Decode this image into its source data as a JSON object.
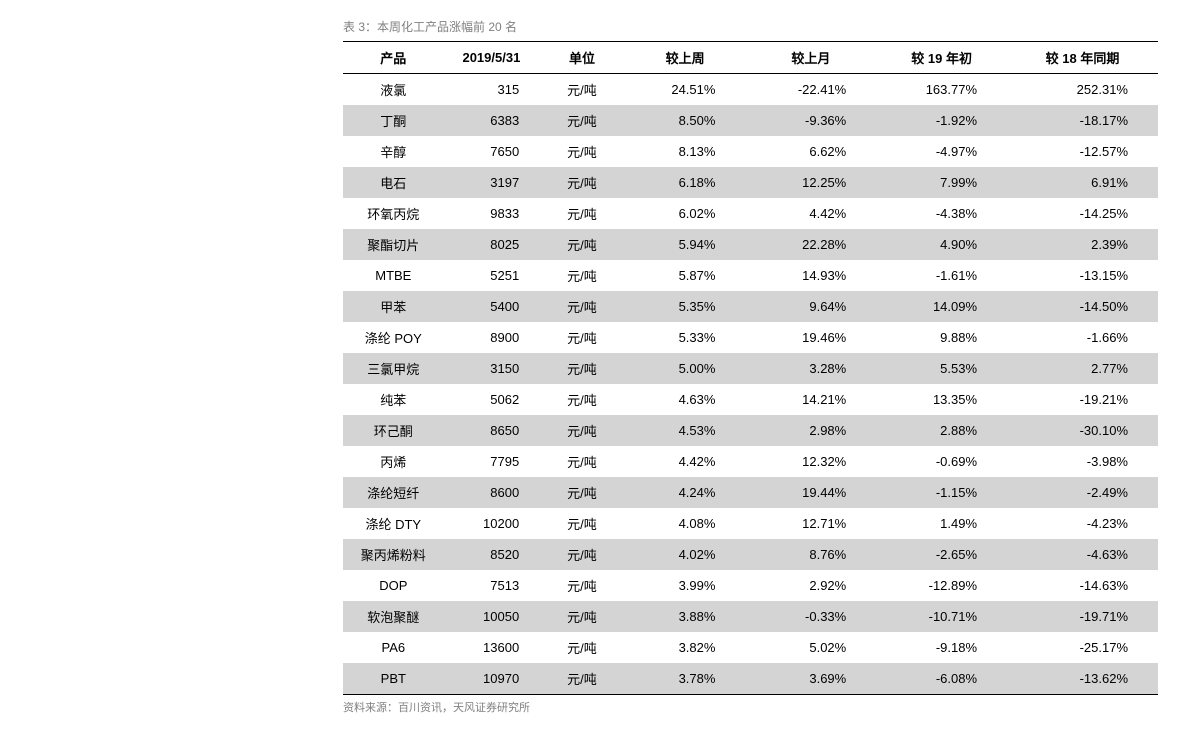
{
  "title": "表 3：本周化工产品涨幅前 20 名",
  "source": "资料来源：百川资讯，天风证券研究所",
  "colors": {
    "background": "#ffffff",
    "stripe_odd": "#d4d4d4",
    "stripe_even": "#ffffff",
    "border": "#000000",
    "caption": "#808080",
    "text": "#000000"
  },
  "typography": {
    "title_fontsize": 12,
    "header_fontsize": 13,
    "cell_fontsize": 13,
    "source_fontsize": 11,
    "header_weight": "bold"
  },
  "columns": [
    {
      "key": "product",
      "label": "产品",
      "align": "center"
    },
    {
      "key": "date",
      "label": "2019/5/31",
      "align": "right"
    },
    {
      "key": "unit",
      "label": "单位",
      "align": "center"
    },
    {
      "key": "wk",
      "label": "较上周",
      "align": "right"
    },
    {
      "key": "mo",
      "label": "较上月",
      "align": "right"
    },
    {
      "key": "ytd",
      "label": "较 19 年初",
      "align": "right"
    },
    {
      "key": "yoy",
      "label": "较 18 年同期",
      "align": "right"
    }
  ],
  "rows": [
    {
      "product": "液氯",
      "date": "315",
      "unit": "元/吨",
      "wk": "24.51%",
      "mo": "-22.41%",
      "ytd": "163.77%",
      "yoy": "252.31%"
    },
    {
      "product": "丁酮",
      "date": "6383",
      "unit": "元/吨",
      "wk": "8.50%",
      "mo": "-9.36%",
      "ytd": "-1.92%",
      "yoy": "-18.17%"
    },
    {
      "product": "辛醇",
      "date": "7650",
      "unit": "元/吨",
      "wk": "8.13%",
      "mo": "6.62%",
      "ytd": "-4.97%",
      "yoy": "-12.57%"
    },
    {
      "product": "电石",
      "date": "3197",
      "unit": "元/吨",
      "wk": "6.18%",
      "mo": "12.25%",
      "ytd": "7.99%",
      "yoy": "6.91%"
    },
    {
      "product": "环氧丙烷",
      "date": "9833",
      "unit": "元/吨",
      "wk": "6.02%",
      "mo": "4.42%",
      "ytd": "-4.38%",
      "yoy": "-14.25%"
    },
    {
      "product": "聚酯切片",
      "date": "8025",
      "unit": "元/吨",
      "wk": "5.94%",
      "mo": "22.28%",
      "ytd": "4.90%",
      "yoy": "2.39%"
    },
    {
      "product": "MTBE",
      "date": "5251",
      "unit": "元/吨",
      "wk": "5.87%",
      "mo": "14.93%",
      "ytd": "-1.61%",
      "yoy": "-13.15%"
    },
    {
      "product": "甲苯",
      "date": "5400",
      "unit": "元/吨",
      "wk": "5.35%",
      "mo": "9.64%",
      "ytd": "14.09%",
      "yoy": "-14.50%"
    },
    {
      "product": "涤纶 POY",
      "date": "8900",
      "unit": "元/吨",
      "wk": "5.33%",
      "mo": "19.46%",
      "ytd": "9.88%",
      "yoy": "-1.66%"
    },
    {
      "product": "三氯甲烷",
      "date": "3150",
      "unit": "元/吨",
      "wk": "5.00%",
      "mo": "3.28%",
      "ytd": "5.53%",
      "yoy": "2.77%"
    },
    {
      "product": "纯苯",
      "date": "5062",
      "unit": "元/吨",
      "wk": "4.63%",
      "mo": "14.21%",
      "ytd": "13.35%",
      "yoy": "-19.21%"
    },
    {
      "product": "环己酮",
      "date": "8650",
      "unit": "元/吨",
      "wk": "4.53%",
      "mo": "2.98%",
      "ytd": "2.88%",
      "yoy": "-30.10%"
    },
    {
      "product": "丙烯",
      "date": "7795",
      "unit": "元/吨",
      "wk": "4.42%",
      "mo": "12.32%",
      "ytd": "-0.69%",
      "yoy": "-3.98%"
    },
    {
      "product": "涤纶短纤",
      "date": "8600",
      "unit": "元/吨",
      "wk": "4.24%",
      "mo": "19.44%",
      "ytd": "-1.15%",
      "yoy": "-2.49%"
    },
    {
      "product": "涤纶 DTY",
      "date": "10200",
      "unit": "元/吨",
      "wk": "4.08%",
      "mo": "12.71%",
      "ytd": "1.49%",
      "yoy": "-4.23%"
    },
    {
      "product": "聚丙烯粉料",
      "date": "8520",
      "unit": "元/吨",
      "wk": "4.02%",
      "mo": "8.76%",
      "ytd": "-2.65%",
      "yoy": "-4.63%"
    },
    {
      "product": "DOP",
      "date": "7513",
      "unit": "元/吨",
      "wk": "3.99%",
      "mo": "2.92%",
      "ytd": "-12.89%",
      "yoy": "-14.63%"
    },
    {
      "product": "软泡聚醚",
      "date": "10050",
      "unit": "元/吨",
      "wk": "3.88%",
      "mo": "-0.33%",
      "ytd": "-10.71%",
      "yoy": "-19.71%"
    },
    {
      "product": "PA6",
      "date": "13600",
      "unit": "元/吨",
      "wk": "3.82%",
      "mo": "5.02%",
      "ytd": "-9.18%",
      "yoy": "-25.17%"
    },
    {
      "product": "PBT",
      "date": "10970",
      "unit": "元/吨",
      "wk": "3.78%",
      "mo": "3.69%",
      "ytd": "-6.08%",
      "yoy": "-13.62%"
    }
  ]
}
